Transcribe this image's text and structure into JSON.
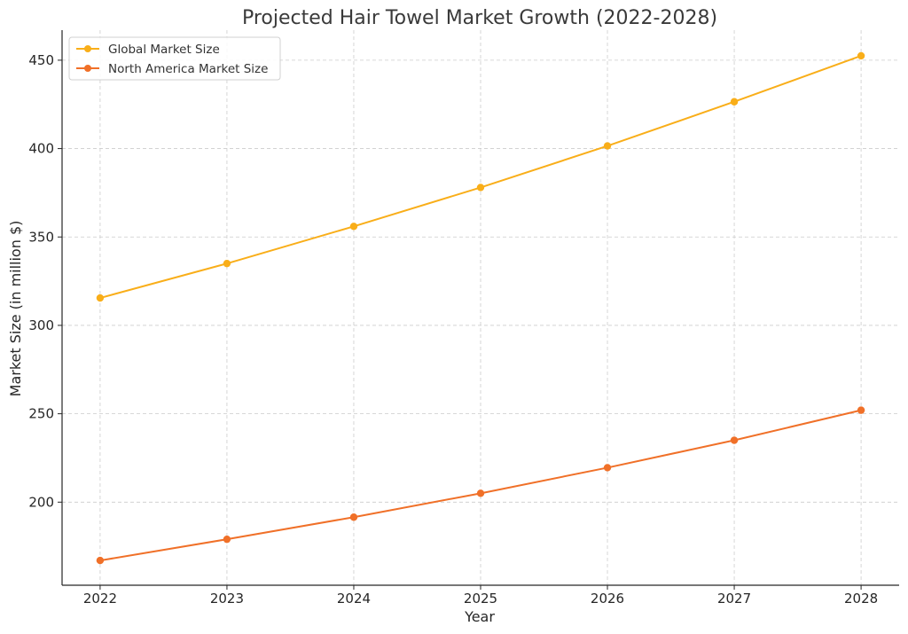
{
  "chart_data": {
    "type": "line",
    "title": "Projected Hair Towel Market Growth (2022-2028)",
    "xlabel": "Year",
    "ylabel": "Market Size (in million $)",
    "x": [
      2022,
      2023,
      2024,
      2025,
      2026,
      2027,
      2028
    ],
    "xlim": [
      2021.7,
      2028.3
    ],
    "ylim": [
      153,
      467
    ],
    "yticks": [
      200,
      250,
      300,
      350,
      400,
      450
    ],
    "grid": true,
    "legend_position": "top-left",
    "series": [
      {
        "name": "Global Market Size",
        "color": "#f9ae19",
        "values": [
          315.5,
          335,
          356,
          378,
          401.5,
          426.5,
          452.5
        ]
      },
      {
        "name": "North America Market Size",
        "color": "#f07028",
        "values": [
          167,
          179,
          191.5,
          205,
          219.5,
          235,
          252
        ]
      }
    ]
  }
}
